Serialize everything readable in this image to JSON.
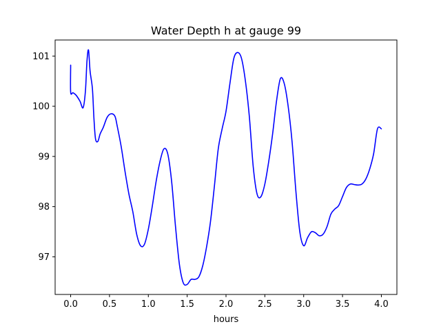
{
  "chart_data": {
    "type": "line",
    "title": "Water Depth h at gauge 99",
    "xlabel": "hours",
    "ylabel": "",
    "xlim": [
      -0.2,
      4.2
    ],
    "ylim": [
      96.25,
      101.32
    ],
    "xticks": [
      0.0,
      0.5,
      1.0,
      1.5,
      2.0,
      2.5,
      3.0,
      3.5,
      4.0
    ],
    "xtick_labels": [
      "0.0",
      "0.5",
      "1.0",
      "1.5",
      "2.0",
      "2.5",
      "3.0",
      "3.5",
      "4.0"
    ],
    "yticks": [
      97,
      98,
      99,
      100,
      101
    ],
    "ytick_labels": [
      "97",
      "98",
      "99",
      "100",
      "101"
    ],
    "grid": false,
    "series": [
      {
        "color": "#0000ff",
        "x": [
          0.0,
          0.0,
          0.03,
          0.07,
          0.12,
          0.16,
          0.19,
          0.21,
          0.23,
          0.25,
          0.28,
          0.3,
          0.32,
          0.35,
          0.38,
          0.42,
          0.47,
          0.52,
          0.57,
          0.6,
          0.65,
          0.7,
          0.75,
          0.8,
          0.85,
          0.9,
          0.95,
          1.0,
          1.05,
          1.1,
          1.15,
          1.2,
          1.25,
          1.3,
          1.35,
          1.4,
          1.45,
          1.5,
          1.55,
          1.6,
          1.65,
          1.7,
          1.75,
          1.8,
          1.85,
          1.9,
          1.95,
          2.0,
          2.05,
          2.1,
          2.15,
          2.2,
          2.25,
          2.3,
          2.35,
          2.4,
          2.45,
          2.5,
          2.55,
          2.6,
          2.65,
          2.7,
          2.75,
          2.8,
          2.85,
          2.9,
          2.95,
          3.0,
          3.05,
          3.1,
          3.15,
          3.2,
          3.25,
          3.3,
          3.35,
          3.4,
          3.45,
          3.5,
          3.55,
          3.6,
          3.65,
          3.7,
          3.75,
          3.8,
          3.85,
          3.9,
          3.95,
          4.0
        ],
        "y": [
          100.82,
          100.28,
          100.27,
          100.22,
          100.1,
          99.97,
          100.3,
          100.9,
          101.12,
          100.7,
          100.35,
          99.75,
          99.35,
          99.3,
          99.45,
          99.58,
          99.78,
          99.85,
          99.8,
          99.6,
          99.2,
          98.7,
          98.25,
          97.9,
          97.45,
          97.22,
          97.25,
          97.55,
          98.0,
          98.5,
          98.9,
          99.15,
          99.05,
          98.5,
          97.6,
          96.85,
          96.48,
          96.45,
          96.55,
          96.55,
          96.6,
          96.82,
          97.2,
          97.7,
          98.4,
          99.15,
          99.55,
          99.9,
          100.45,
          100.95,
          101.07,
          100.95,
          100.5,
          99.8,
          98.8,
          98.25,
          98.2,
          98.45,
          98.9,
          99.45,
          100.1,
          100.55,
          100.45,
          100.0,
          99.3,
          98.3,
          97.5,
          97.22,
          97.38,
          97.5,
          97.48,
          97.42,
          97.45,
          97.6,
          97.85,
          97.95,
          98.02,
          98.2,
          98.38,
          98.45,
          98.44,
          98.43,
          98.45,
          98.55,
          98.75,
          99.05,
          99.55,
          99.55
        ]
      }
    ]
  }
}
